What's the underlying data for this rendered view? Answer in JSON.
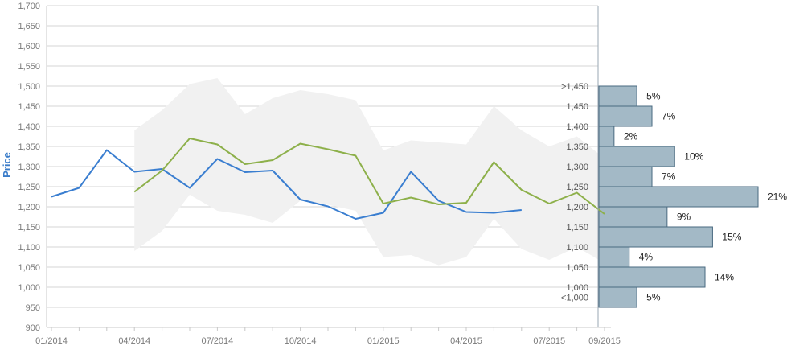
{
  "chart_data": {
    "type": "line",
    "title": "",
    "ylabel": "Price",
    "ylim": [
      900,
      1700
    ],
    "yticks": [
      "900",
      "950",
      "1,000",
      "1,050",
      "1,100",
      "1,150",
      "1,200",
      "1,250",
      "1,300",
      "1,350",
      "1,400",
      "1,450",
      "1,500",
      "1,550",
      "1,600",
      "1,650",
      "1,700"
    ],
    "ytick_values": [
      900,
      950,
      1000,
      1050,
      1100,
      1150,
      1200,
      1250,
      1300,
      1350,
      1400,
      1450,
      1500,
      1550,
      1600,
      1650,
      1700
    ],
    "x_start": "2014-01",
    "x_end": "2015-09",
    "x_tick_labels": [
      "01/2014",
      "04/2014",
      "07/2014",
      "10/2014",
      "01/2015",
      "04/2015",
      "07/2015",
      "09/2015"
    ],
    "x_tick_months": [
      "2014-01",
      "2014-04",
      "2014-07",
      "2014-10",
      "2015-01",
      "2015-04",
      "2015-07",
      "2015-09"
    ],
    "grid": true,
    "colors": {
      "blue_series": "#3a7ed0",
      "green_series": "#8db04a",
      "band": "#f1f1f1",
      "histogram_fill": "#a3b9c6",
      "histogram_stroke": "#4a6a80",
      "grid": "#d6d6d6",
      "axis": "#9aa7b3"
    },
    "series": [
      {
        "color": "#3a7ed0",
        "points": [
          [
            "2014-01",
            1225
          ],
          [
            "2014-02",
            1247
          ],
          [
            "2014-03",
            1341
          ],
          [
            "2014-04",
            1287
          ],
          [
            "2014-05",
            1294
          ],
          [
            "2014-06",
            1247
          ],
          [
            "2014-07",
            1319
          ],
          [
            "2014-08",
            1286
          ],
          [
            "2014-09",
            1290
          ],
          [
            "2014-10",
            1218
          ],
          [
            "2014-11",
            1201
          ],
          [
            "2014-12",
            1170
          ],
          [
            "2015-01",
            1185
          ],
          [
            "2015-02",
            1287
          ],
          [
            "2015-03",
            1215
          ],
          [
            "2015-04",
            1187
          ],
          [
            "2015-05",
            1185
          ],
          [
            "2015-06",
            1192
          ]
        ]
      },
      {
        "color": "#8db04a",
        "points": [
          [
            "2014-04",
            1237
          ],
          [
            "2014-05",
            1290
          ],
          [
            "2014-06",
            1370
          ],
          [
            "2014-07",
            1355
          ],
          [
            "2014-08",
            1306
          ],
          [
            "2014-09",
            1316
          ],
          [
            "2014-10",
            1357
          ],
          [
            "2014-11",
            1343
          ],
          [
            "2014-12",
            1327
          ],
          [
            "2015-01",
            1208
          ],
          [
            "2015-02",
            1223
          ],
          [
            "2015-03",
            1206
          ],
          [
            "2015-04",
            1210
          ],
          [
            "2015-05",
            1311
          ],
          [
            "2015-06",
            1242
          ],
          [
            "2015-07",
            1208
          ],
          [
            "2015-08",
            1235
          ],
          [
            "2015-09",
            1182
          ]
        ]
      }
    ],
    "band": {
      "upper": [
        [
          "2014-04",
          1390
        ],
        [
          "2014-05",
          1440
        ],
        [
          "2014-06",
          1505
        ],
        [
          "2014-07",
          1520
        ],
        [
          "2014-08",
          1430
        ],
        [
          "2014-09",
          1470
        ],
        [
          "2014-10",
          1490
        ],
        [
          "2014-11",
          1480
        ],
        [
          "2014-12",
          1465
        ],
        [
          "2015-01",
          1340
        ],
        [
          "2015-02",
          1365
        ],
        [
          "2015-03",
          1360
        ],
        [
          "2015-04",
          1355
        ],
        [
          "2015-05",
          1450
        ],
        [
          "2015-06",
          1390
        ],
        [
          "2015-07",
          1350
        ],
        [
          "2015-08",
          1375
        ],
        [
          "2015-09",
          1320
        ]
      ],
      "lower": [
        [
          "2014-04",
          1090
        ],
        [
          "2014-05",
          1140
        ],
        [
          "2014-06",
          1230
        ],
        [
          "2014-07",
          1190
        ],
        [
          "2014-08",
          1180
        ],
        [
          "2014-09",
          1160
        ],
        [
          "2014-10",
          1215
        ],
        [
          "2014-11",
          1205
        ],
        [
          "2014-12",
          1190
        ],
        [
          "2015-01",
          1075
        ],
        [
          "2015-02",
          1080
        ],
        [
          "2015-03",
          1055
        ],
        [
          "2015-04",
          1075
        ],
        [
          "2015-05",
          1170
        ],
        [
          "2015-06",
          1095
        ],
        [
          "2015-07",
          1068
        ],
        [
          "2015-08",
          1100
        ],
        [
          "2015-09",
          1060
        ]
      ]
    },
    "histogram": {
      "bins": [
        {
          "label": ">1,450",
          "lo": 1450,
          "hi": 1500,
          "pct": 5,
          "pct_label": "5%"
        },
        {
          "label": "1,450",
          "lo": 1400,
          "hi": 1450,
          "pct": 7,
          "pct_label": "7%"
        },
        {
          "label": "1,400",
          "lo": 1350,
          "hi": 1400,
          "pct": 2,
          "pct_label": "2%"
        },
        {
          "label": "1,350",
          "lo": 1300,
          "hi": 1350,
          "pct": 10,
          "pct_label": "10%"
        },
        {
          "label": "1,300",
          "lo": 1250,
          "hi": 1300,
          "pct": 7,
          "pct_label": "7%"
        },
        {
          "label": "1,250",
          "lo": 1200,
          "hi": 1250,
          "pct": 21,
          "pct_label": "21%"
        },
        {
          "label": "1,200",
          "lo": 1150,
          "hi": 1200,
          "pct": 9,
          "pct_label": "9%"
        },
        {
          "label": "1,150",
          "lo": 1100,
          "hi": 1150,
          "pct": 15,
          "pct_label": "15%"
        },
        {
          "label": "1,100",
          "lo": 1050,
          "hi": 1100,
          "pct": 4,
          "pct_label": "4%"
        },
        {
          "label": "1,050",
          "lo": 1000,
          "hi": 1050,
          "pct": 14,
          "pct_label": "14%"
        },
        {
          "label": "1,000",
          "lo": 950,
          "hi": 1000,
          "pct": 5,
          "pct_label": "5%"
        },
        {
          "label": "<1,000",
          "lo": null,
          "hi": null,
          "pct": null,
          "pct_label": ""
        }
      ]
    }
  }
}
